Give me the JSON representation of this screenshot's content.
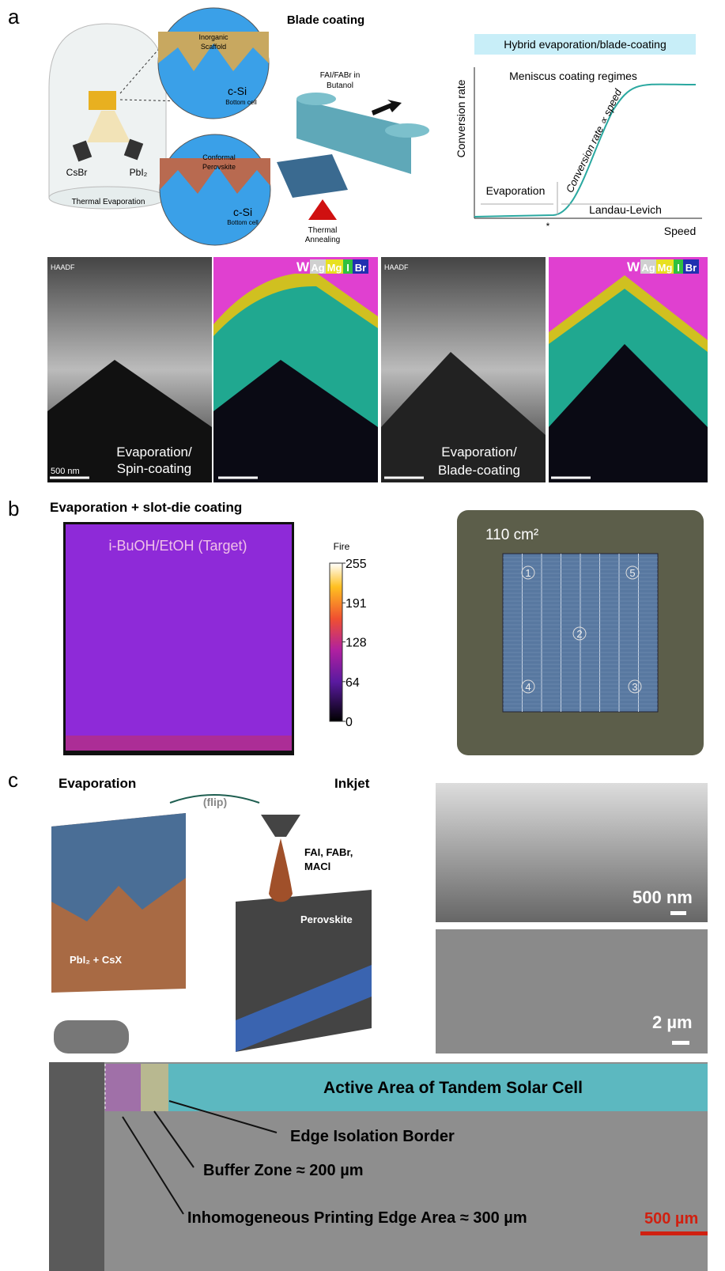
{
  "panel_a": {
    "label": "a",
    "title": "Blade coating",
    "scaffold": [
      "Inorganic",
      "Scaffold"
    ],
    "top_si": "c-Si",
    "top_bottom_cell": "Bottom cell",
    "perovskite": [
      "Conformal",
      "Perovskite"
    ],
    "bot_si": "c-Si",
    "bot_bottom_cell": "Bottom cell",
    "source_1": "CsBr",
    "source_2": "PbI₂",
    "chamber": "Thermal Evaporation",
    "ink": [
      "FAI/FABr in",
      "Butanol"
    ],
    "annealing": [
      "Thermal",
      "Annealing"
    ],
    "graph": {
      "banner": "Hybrid evaporation/blade-coating",
      "regimes": "Meniscus coating regimes",
      "y_label": "Conversion rate",
      "x_label": "Speed",
      "slope_note": "Conversion rate ∝ speed",
      "left_regime": "Evaporation",
      "right_regime": "Landau-Levich",
      "marker": "*"
    },
    "micrographs": {
      "haadf": "HAADF",
      "elements": [
        "W",
        "Ag",
        "Mg",
        "I",
        "Br"
      ],
      "scale": "500 nm",
      "spin": [
        "Evaporation/",
        "Spin-coating"
      ],
      "blade": [
        "Evaporation/",
        "Blade-coating"
      ]
    }
  },
  "panel_b": {
    "label": "b",
    "title": "Evaporation + slot-die coating",
    "map_label": "i-BuOH/EtOH (Target)",
    "colorbar_title": "Fire",
    "colorbar_ticks": [
      255,
      191,
      128,
      64,
      0
    ],
    "area": "110 cm²",
    "points": [
      "1",
      "5",
      "2",
      "4",
      "3"
    ]
  },
  "panel_c": {
    "label": "c",
    "left_title": "Evaporation",
    "right_title": "Inkjet",
    "flip": "(flip)",
    "ink": [
      "FAI, FABr,",
      "MACl"
    ],
    "perovskite": "Perovskite",
    "precursor": "PbI₂ + CsX",
    "sem_scale_1": "500 nm",
    "sem_scale_2": "2 µm",
    "active_area": "Active Area of Tandem Solar Cell",
    "edge_isolation": "Edge Isolation Border",
    "buffer_zone": "Buffer Zone ≈ 200 µm",
    "edge_area": "Inhomogeneous Printing Edge Area ≈ 300 µm",
    "scale": "500 µm"
  }
}
